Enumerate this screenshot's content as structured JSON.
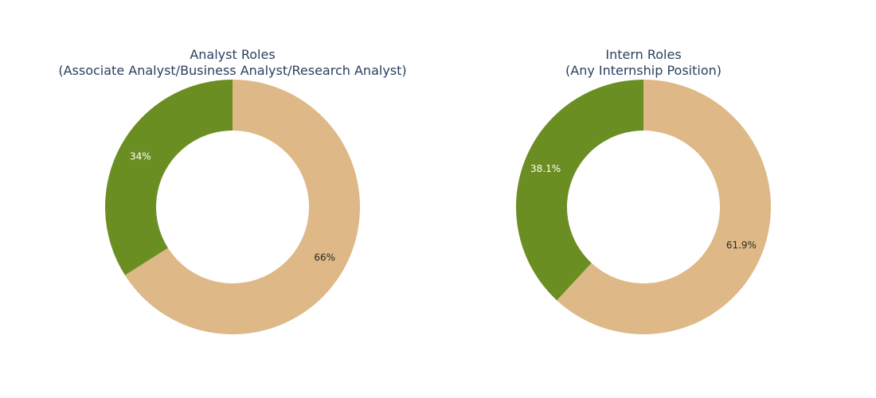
{
  "chart_data": [
    {
      "type": "pie",
      "hole": 0.6,
      "title": "Analyst Roles",
      "subtitle": "(Associate Analyst/Business Analyst/Research Analyst)",
      "slices": [
        {
          "value": 66,
          "label": "66%",
          "color": "#deb887",
          "label_color": "#2a2a2a"
        },
        {
          "value": 34,
          "label": "34%",
          "color": "#6b8e23",
          "label_color": "#ffffff"
        }
      ]
    },
    {
      "type": "pie",
      "hole": 0.6,
      "title": "Intern Roles",
      "subtitle": "(Any Internship Position)",
      "slices": [
        {
          "value": 61.9,
          "label": "61.9%",
          "color": "#deb887",
          "label_color": "#2a2a2a"
        },
        {
          "value": 38.1,
          "label": "38.1%",
          "color": "#6b8e23",
          "label_color": "#ffffff"
        }
      ]
    }
  ]
}
